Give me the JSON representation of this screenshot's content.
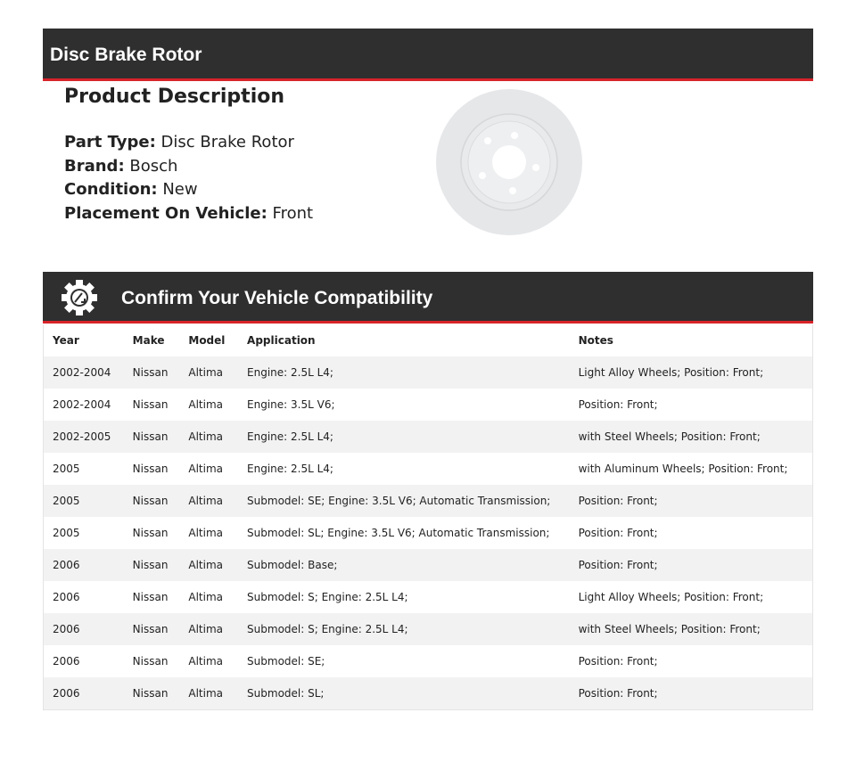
{
  "title": "Disc Brake Rotor",
  "description": {
    "heading": "Product Description",
    "fields": [
      {
        "label": "Part Type:",
        "value": "Disc Brake Rotor"
      },
      {
        "label": "Brand:",
        "value": "Bosch"
      },
      {
        "label": "Condition:",
        "value": "New"
      },
      {
        "label": "Placement On Vehicle:",
        "value": "Front"
      }
    ]
  },
  "compat": {
    "title": "Confirm Your Vehicle Compatibility",
    "columns": [
      "Year",
      "Make",
      "Model",
      "Application",
      "Notes"
    ],
    "rows": [
      [
        "2002-2004",
        "Nissan",
        "Altima",
        "Engine: 2.5L L4;",
        "Light Alloy Wheels; Position: Front;"
      ],
      [
        "2002-2004",
        "Nissan",
        "Altima",
        "Engine: 3.5L V6;",
        "Position: Front;"
      ],
      [
        "2002-2005",
        "Nissan",
        "Altima",
        "Engine: 2.5L L4;",
        "with Steel Wheels; Position: Front;"
      ],
      [
        "2005",
        "Nissan",
        "Altima",
        "Engine: 2.5L L4;",
        "with Aluminum Wheels; Position: Front;"
      ],
      [
        "2005",
        "Nissan",
        "Altima",
        "Submodel: SE; Engine: 3.5L V6; Automatic Transmission;",
        "Position: Front;"
      ],
      [
        "2005",
        "Nissan",
        "Altima",
        "Submodel: SL; Engine: 3.5L V6; Automatic Transmission;",
        "Position: Front;"
      ],
      [
        "2006",
        "Nissan",
        "Altima",
        "Submodel: Base;",
        "Position: Front;"
      ],
      [
        "2006",
        "Nissan",
        "Altima",
        "Submodel: S; Engine: 2.5L L4;",
        "Light Alloy Wheels; Position: Front;"
      ],
      [
        "2006",
        "Nissan",
        "Altima",
        "Submodel: S; Engine: 2.5L L4;",
        "with Steel Wheels; Position: Front;"
      ],
      [
        "2006",
        "Nissan",
        "Altima",
        "Submodel: SE;",
        "Position: Front;"
      ],
      [
        "2006",
        "Nissan",
        "Altima",
        "Submodel: SL;",
        "Position: Front;"
      ]
    ]
  },
  "colors": {
    "bar": "#2f2f2f",
    "accent": "#d8232a",
    "stripe": "#f2f2f2"
  }
}
